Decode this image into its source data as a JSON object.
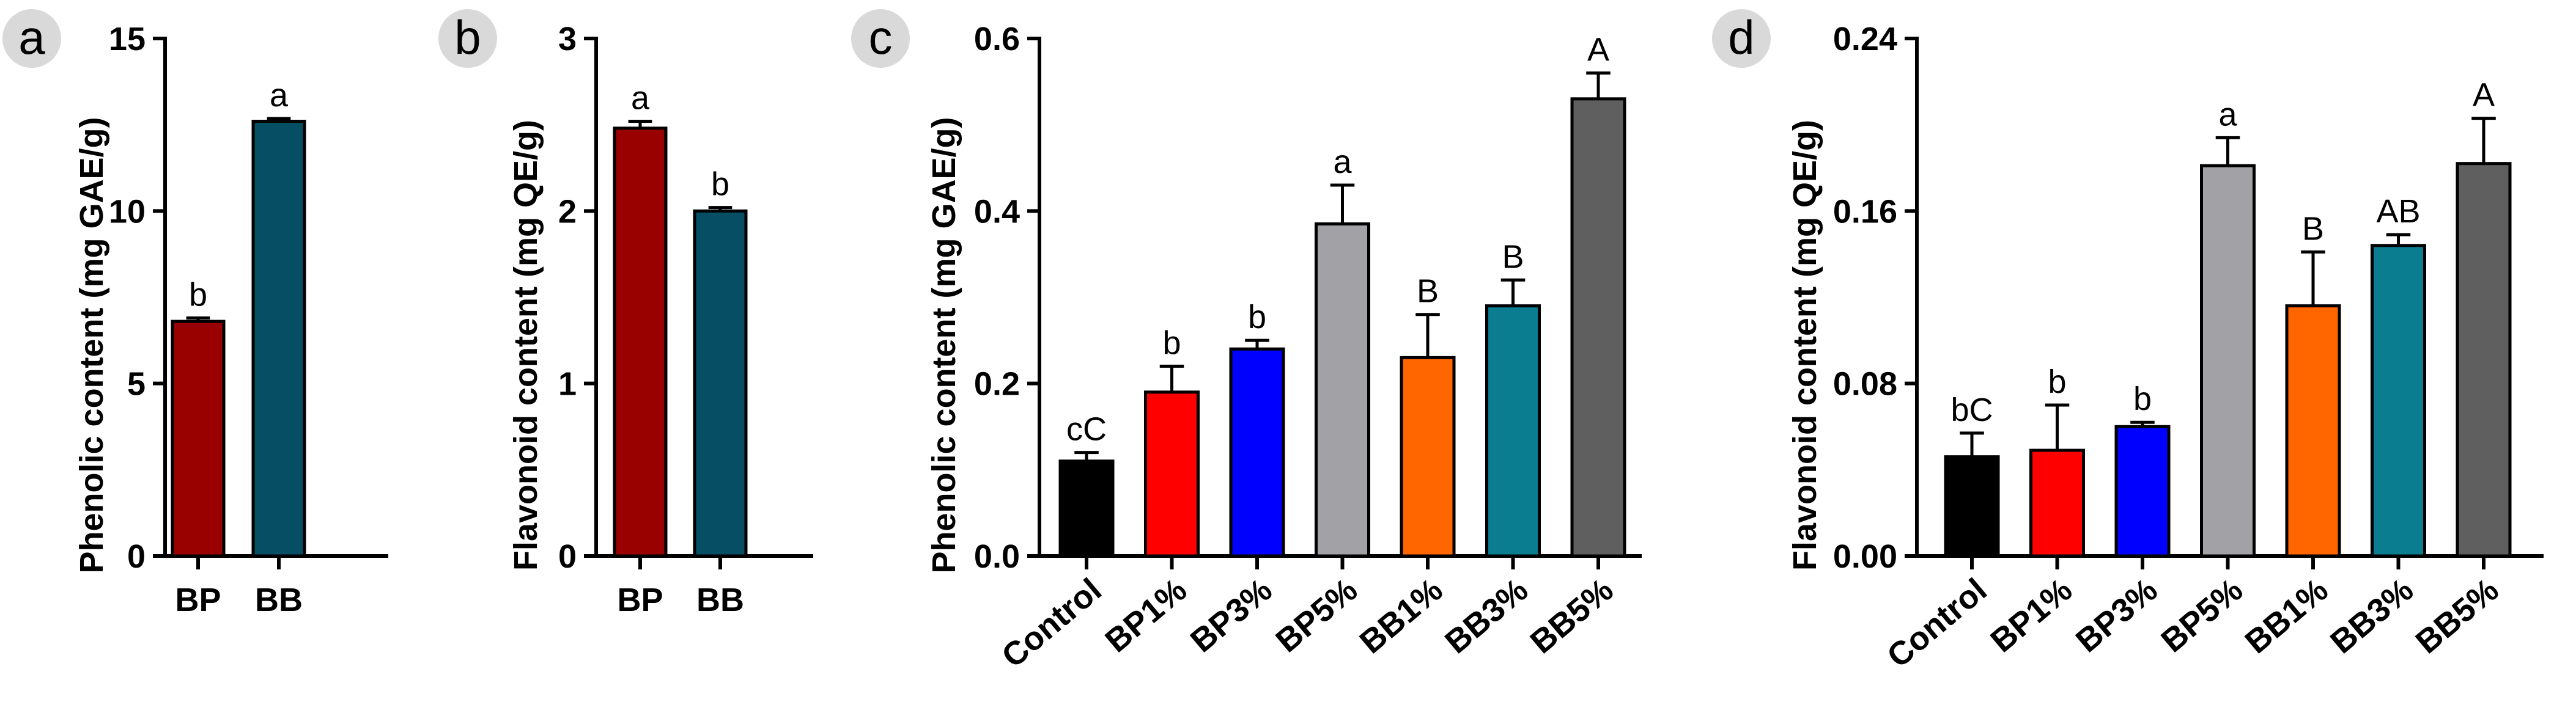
{
  "chart_data": [
    {
      "panel": "a",
      "type": "bar",
      "title": "",
      "xlabel": "",
      "ylabel": "Phenolic content (mg GAE/g)",
      "ylim": [
        0,
        15
      ],
      "yticks": [
        "0",
        "5",
        "10",
        "15"
      ],
      "grid": false,
      "categories": [
        "BP",
        "BB"
      ],
      "values": [
        6.8,
        12.6
      ],
      "errors": [
        0.1,
        0.08
      ],
      "labels": [
        "b",
        "a"
      ],
      "colors": [
        "#990000",
        "#054e63"
      ]
    },
    {
      "panel": "b",
      "type": "bar",
      "title": "",
      "xlabel": "",
      "ylabel": "Flavonoid content (mg QE/g)",
      "ylim": [
        0,
        3
      ],
      "yticks": [
        "0",
        "1",
        "2",
        "3"
      ],
      "grid": false,
      "categories": [
        "BP",
        "BB"
      ],
      "values": [
        2.48,
        2.0
      ],
      "errors": [
        0.04,
        0.02
      ],
      "labels": [
        "a",
        "b"
      ],
      "colors": [
        "#990000",
        "#054e63"
      ]
    },
    {
      "panel": "c",
      "type": "bar",
      "title": "",
      "xlabel": "",
      "ylabel": "Phenolic content (mg GAE/g)",
      "ylim": [
        0,
        0.6
      ],
      "yticks": [
        "0.0",
        "0.2",
        "0.4",
        "0.6"
      ],
      "grid": false,
      "categories": [
        "Control",
        "BP1%",
        "BP3%",
        "BP5%",
        "BB1%",
        "BB3%",
        "BB5%"
      ],
      "values": [
        0.11,
        0.19,
        0.24,
        0.385,
        0.23,
        0.29,
        0.53
      ],
      "errors": [
        0.01,
        0.03,
        0.01,
        0.045,
        0.05,
        0.03,
        0.03
      ],
      "labels": [
        "cC",
        "b",
        "b",
        "a",
        "B",
        "B",
        "A"
      ],
      "colors": [
        "#000000",
        "#ff0000",
        "#0000ff",
        "#a2a2a6",
        "#ff6600",
        "#0a7d91",
        "#5f5f5f"
      ]
    },
    {
      "panel": "d",
      "type": "bar",
      "title": "",
      "xlabel": "",
      "ylabel": "Flavonoid content (mg QE/g)",
      "ylim": [
        0,
        0.24
      ],
      "yticks": [
        "0.00",
        "0.08",
        "0.16",
        "0.24"
      ],
      "grid": false,
      "categories": [
        "Control",
        "BP1%",
        "BP3%",
        "BP5%",
        "BB1%",
        "BB3%",
        "BB5%"
      ],
      "values": [
        0.046,
        0.049,
        0.06,
        0.181,
        0.116,
        0.144,
        0.182
      ],
      "errors": [
        0.011,
        0.021,
        0.002,
        0.013,
        0.025,
        0.005,
        0.021
      ],
      "labels": [
        "bC",
        "b",
        "b",
        "a",
        "B",
        "AB",
        "A"
      ],
      "colors": [
        "#000000",
        "#ff0000",
        "#0000ff",
        "#a2a2a6",
        "#ff6600",
        "#0a7d91",
        "#5f5f5f"
      ]
    }
  ]
}
